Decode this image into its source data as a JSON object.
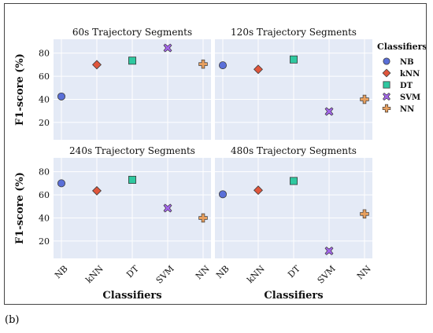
{
  "figure_label": "(b)",
  "shared": {
    "xlabel": "Classifiers",
    "ylabel": "F1-score (%)",
    "legend_title": "Classifiers"
  },
  "legend": [
    {
      "name": "NB",
      "marker": "circle",
      "color": "#5a6fd8"
    },
    {
      "name": "kNN",
      "marker": "diamond",
      "color": "#e0563c"
    },
    {
      "name": "DT",
      "marker": "square",
      "color": "#2fc8a0"
    },
    {
      "name": "SVM",
      "marker": "x",
      "color": "#a266e8"
    },
    {
      "name": "NN",
      "marker": "plus",
      "color": "#e8a05f"
    }
  ],
  "colors": {
    "plot_bg": "#e4eaf6",
    "grid": "#ffffff",
    "marker_edge": "#3a3a3a"
  },
  "chart_data": [
    {
      "type": "scatter",
      "title": "60s Trajectory Segments",
      "categories": [
        "NB",
        "kNN",
        "DT",
        "SVM",
        "NN"
      ],
      "values": [
        42.5,
        70,
        73.5,
        84.5,
        70.5
      ],
      "yticks": [
        20,
        40,
        60,
        80
      ],
      "ylim": [
        5,
        92
      ],
      "grid": true
    },
    {
      "type": "scatter",
      "title": "120s Trajectory Segments",
      "categories": [
        "NB",
        "kNN",
        "DT",
        "SVM",
        "NN"
      ],
      "values": [
        69.5,
        66,
        74.5,
        29.5,
        40
      ],
      "yticks": [
        20,
        40,
        60,
        80
      ],
      "ylim": [
        5,
        92
      ],
      "grid": true
    },
    {
      "type": "scatter",
      "title": "240s Trajectory Segments",
      "categories": [
        "NB",
        "kNN",
        "DT",
        "SVM",
        "NN"
      ],
      "values": [
        70,
        63.5,
        73,
        48.5,
        40
      ],
      "yticks": [
        20,
        40,
        60,
        80
      ],
      "ylim": [
        5,
        92
      ],
      "grid": true
    },
    {
      "type": "scatter",
      "title": "480s Trajectory Segments",
      "categories": [
        "NB",
        "kNN",
        "DT",
        "SVM",
        "NN"
      ],
      "values": [
        60.5,
        64,
        72,
        11.5,
        43.5
      ],
      "yticks": [
        20,
        40,
        60,
        80
      ],
      "ylim": [
        5,
        92
      ],
      "grid": true
    }
  ]
}
